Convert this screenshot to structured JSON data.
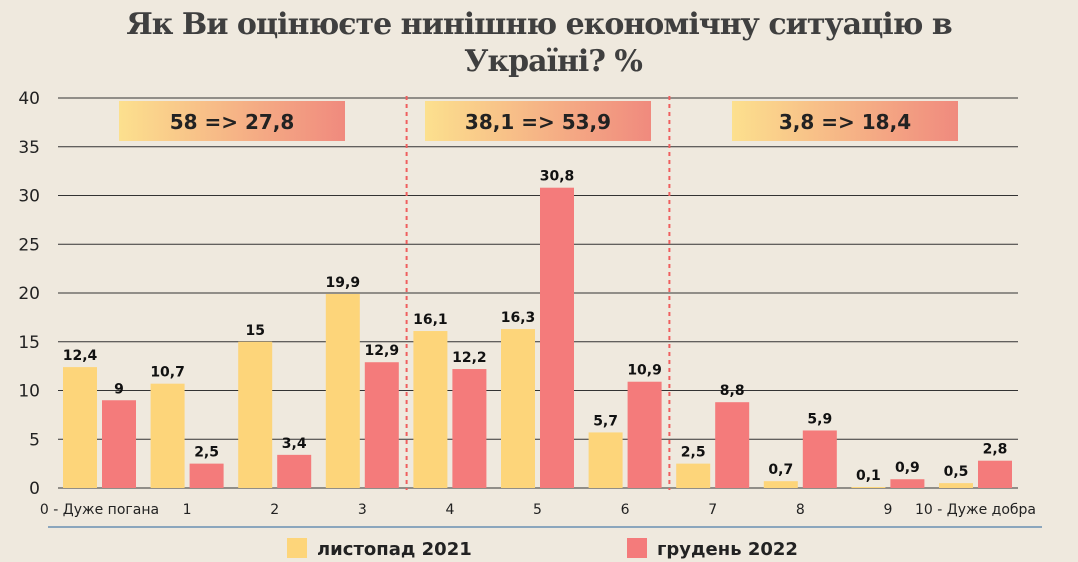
{
  "title_line1": "Як Ви оцінюєте нинішню економічну ситуацію в",
  "title_line2": "Україні? %",
  "colors": {
    "series1": "#fdd57a",
    "series2": "#f47b7b",
    "grid": "#333333",
    "divider": "#ef5f5f",
    "axis_line": "#6a8fb2",
    "box_gradient_start": "#fce08e",
    "box_gradient_end": "#f08a7e"
  },
  "chart_data": {
    "type": "bar",
    "categories": [
      "0 - Дуже погана",
      "1",
      "2",
      "3",
      "4",
      "5",
      "6",
      "7",
      "8",
      "9",
      "10 - Дуже добра"
    ],
    "series": [
      {
        "name": "листопад 2021",
        "values": [
          12.4,
          10.7,
          15,
          19.9,
          16.1,
          16.3,
          5.7,
          2.5,
          0.7,
          0.1,
          0.5
        ],
        "labels": [
          "12,4",
          "10,7",
          "15",
          "19,9",
          "16,1",
          "16,3",
          "5,7",
          "2,5",
          "0,7",
          "0,1",
          "0,5"
        ]
      },
      {
        "name": "грудень 2022",
        "values": [
          9,
          2.5,
          3.4,
          12.9,
          12.2,
          30.8,
          10.9,
          8.8,
          5.9,
          0.9,
          2.8
        ],
        "labels": [
          "9",
          "2,5",
          "3,4",
          "12,9",
          "12,2",
          "30,8",
          "10,9",
          "8,8",
          "5,9",
          "0,9",
          "2,8"
        ]
      }
    ],
    "yticks": [
      0,
      5,
      10,
      15,
      20,
      25,
      30,
      35,
      40
    ],
    "ylim": [
      0,
      40
    ],
    "grid": true,
    "legend_position": "bottom",
    "group_boxes": [
      {
        "text": "58 => 27,8",
        "categories": [
          "0 - Дуже погана",
          "1",
          "2",
          "3"
        ]
      },
      {
        "text": "38,1 => 53,9",
        "categories": [
          "4",
          "5",
          "6"
        ]
      },
      {
        "text": "3,8 => 18,4",
        "categories": [
          "7",
          "8",
          "9",
          "10 - Дуже добра"
        ]
      }
    ]
  }
}
